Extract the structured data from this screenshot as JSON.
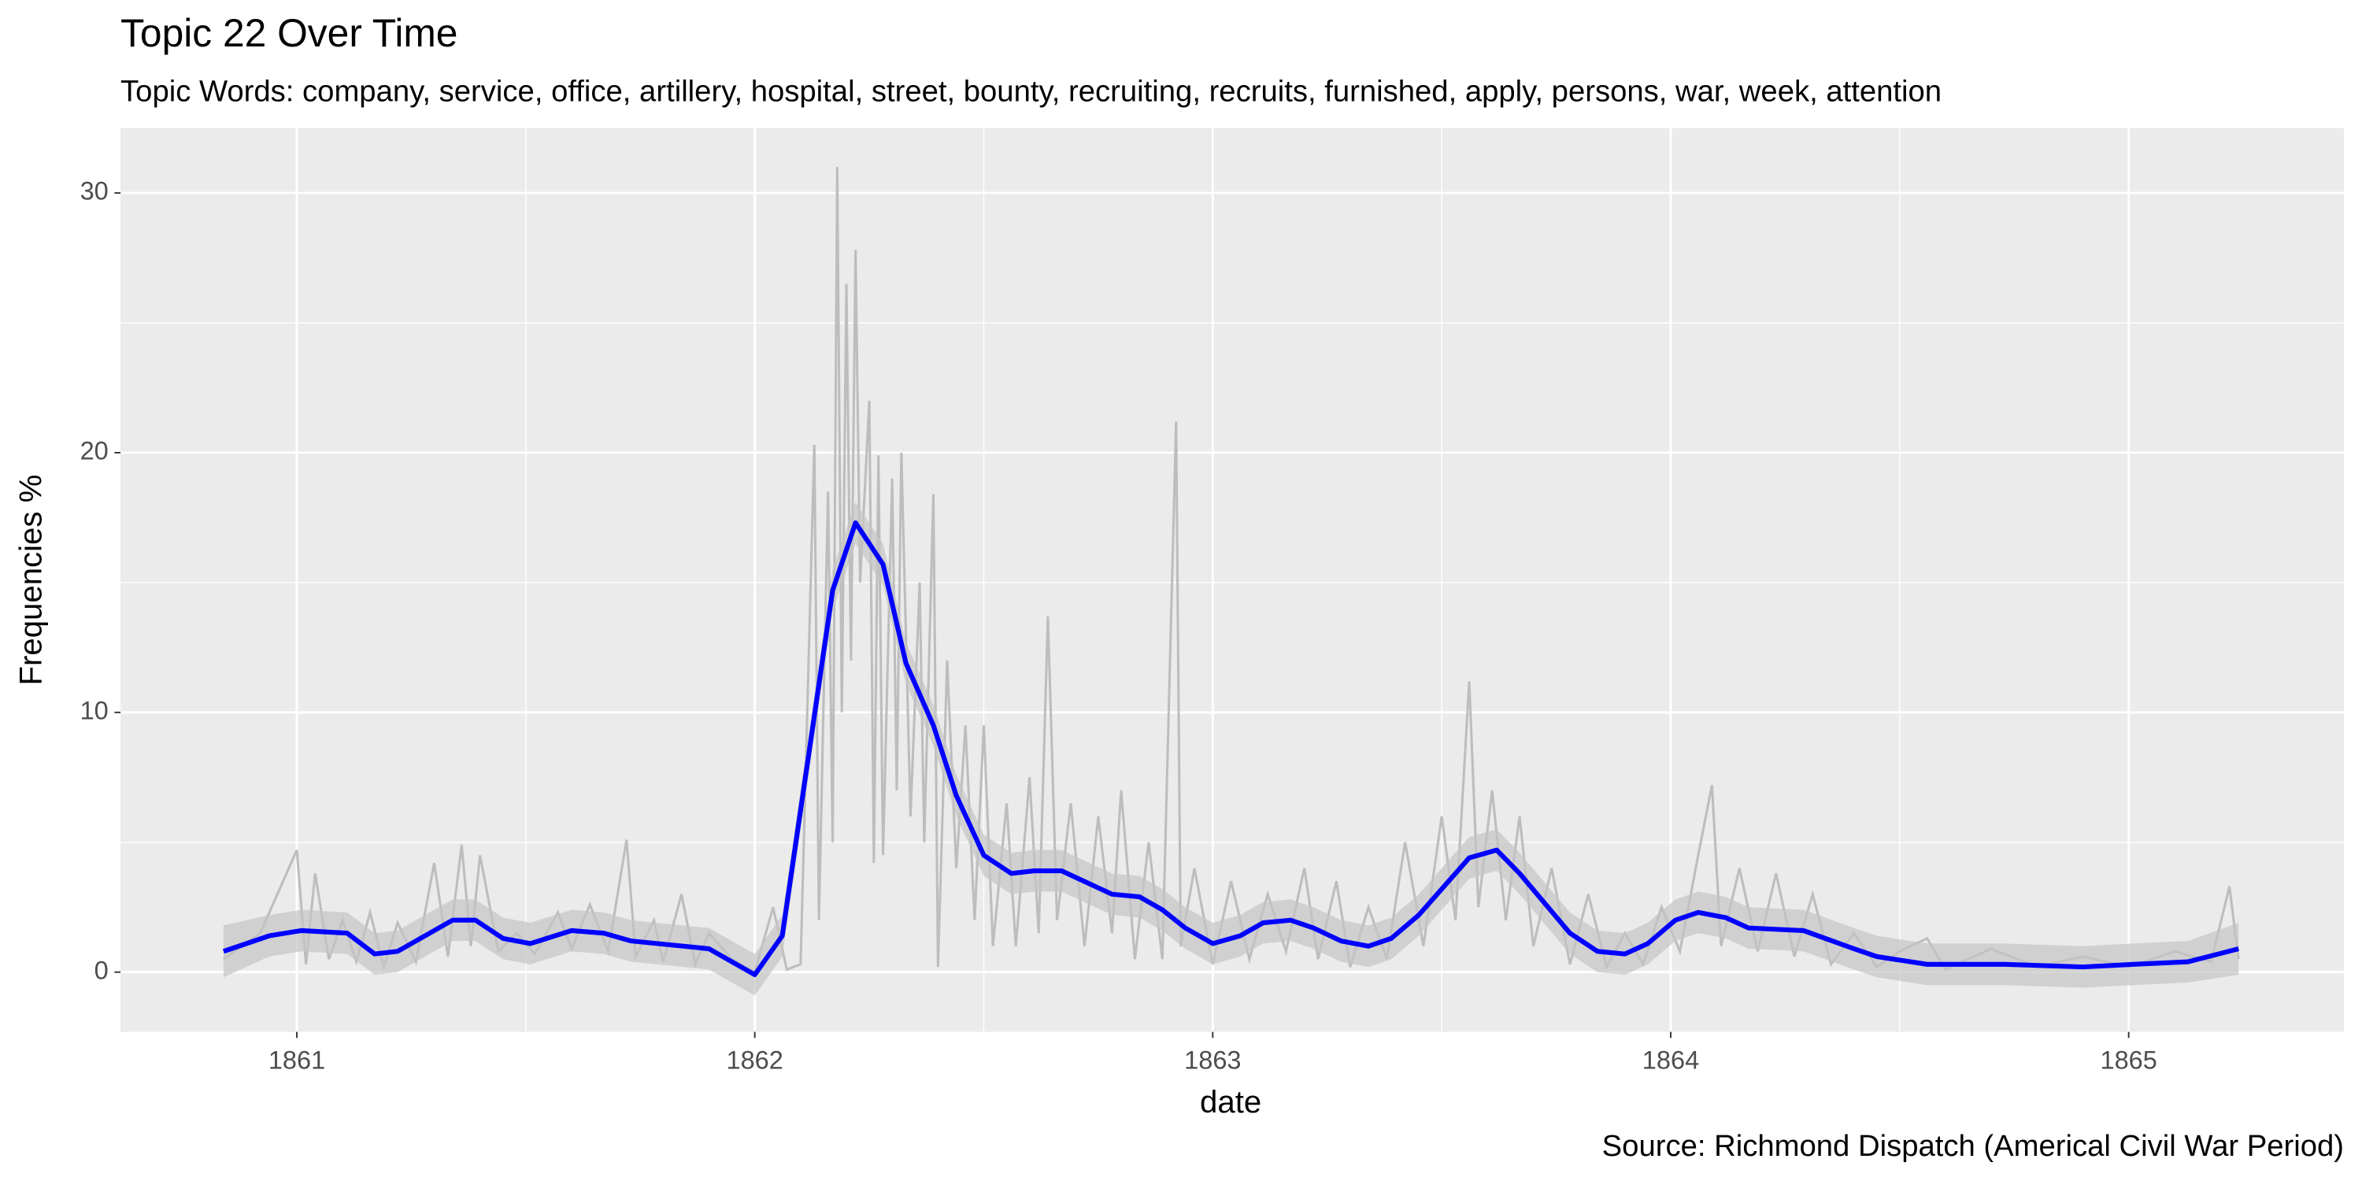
{
  "chart_data": {
    "type": "line",
    "title": "Topic 22 Over Time",
    "subtitle": "Topic Words: company, service, office, artillery, hospital, street, bounty, recruiting, recruits, furnished, apply, persons, war, week, attention",
    "x_label": "date",
    "y_label": "Frequencies %",
    "caption": "Source: Richmond Dispatch (Americal Civil War Period)",
    "xlim": [
      1860.615,
      1865.47
    ],
    "xticks": [
      1861,
      1862,
      1863,
      1864,
      1865
    ],
    "xminorticks": [
      1861.5,
      1862.5,
      1863.5,
      1864.5
    ],
    "ylim": [
      -2.3,
      32.5
    ],
    "yticks": [
      0,
      10,
      20,
      30
    ],
    "yminorticks": [
      5,
      15,
      25
    ],
    "grid": true,
    "background": "#ebebeb",
    "series": [
      {
        "color": "#bdbdbd",
        "x": [
          1860.84,
          1860.92,
          1861.0,
          1861.02,
          1861.04,
          1861.07,
          1861.1,
          1861.13,
          1861.16,
          1861.19,
          1861.22,
          1861.26,
          1861.3,
          1861.33,
          1861.36,
          1861.38,
          1861.4,
          1861.44,
          1861.48,
          1861.52,
          1861.57,
          1861.6,
          1861.64,
          1861.68,
          1861.72,
          1861.74,
          1861.78,
          1861.8,
          1861.84,
          1861.87,
          1861.9,
          1861.95,
          1862.0,
          1862.04,
          1862.07,
          1862.1,
          1862.13,
          1862.14,
          1862.16,
          1862.17,
          1862.18,
          1862.19,
          1862.2,
          1862.21,
          1862.22,
          1862.23,
          1862.25,
          1862.26,
          1862.27,
          1862.28,
          1862.3,
          1862.31,
          1862.32,
          1862.34,
          1862.36,
          1862.37,
          1862.39,
          1862.4,
          1862.42,
          1862.44,
          1862.46,
          1862.48,
          1862.5,
          1862.52,
          1862.55,
          1862.57,
          1862.6,
          1862.62,
          1862.64,
          1862.66,
          1862.69,
          1862.72,
          1862.75,
          1862.78,
          1862.8,
          1862.83,
          1862.86,
          1862.89,
          1862.92,
          1862.93,
          1862.96,
          1863.0,
          1863.04,
          1863.08,
          1863.12,
          1863.16,
          1863.2,
          1863.23,
          1863.27,
          1863.3,
          1863.34,
          1863.38,
          1863.42,
          1863.46,
          1863.5,
          1863.53,
          1863.56,
          1863.58,
          1863.61,
          1863.64,
          1863.67,
          1863.7,
          1863.74,
          1863.78,
          1863.82,
          1863.86,
          1863.9,
          1863.94,
          1863.98,
          1864.02,
          1864.06,
          1864.09,
          1864.11,
          1864.15,
          1864.19,
          1864.23,
          1864.27,
          1864.31,
          1864.35,
          1864.4,
          1864.45,
          1864.5,
          1864.56,
          1864.6,
          1864.7,
          1864.8,
          1864.9,
          1865.0,
          1865.1,
          1865.18,
          1865.22,
          1865.24
        ],
        "values": [
          0.5,
          1.5,
          4.7,
          0.3,
          3.8,
          0.5,
          2.0,
          0.4,
          2.3,
          0.2,
          1.9,
          0.4,
          4.2,
          0.6,
          4.9,
          1.0,
          4.5,
          0.8,
          1.5,
          0.7,
          2.3,
          0.9,
          2.6,
          0.8,
          5.1,
          0.6,
          2.0,
          0.4,
          3.0,
          0.3,
          1.5,
          0.5,
          0.0,
          2.5,
          0.1,
          0.3,
          20.3,
          2.0,
          18.5,
          5.0,
          31.0,
          10.0,
          26.5,
          12.0,
          27.8,
          15.0,
          22.0,
          4.2,
          19.9,
          4.5,
          19.0,
          7.0,
          20.0,
          6.0,
          15.0,
          5.0,
          18.4,
          0.2,
          12.0,
          4.0,
          9.5,
          2.0,
          9.5,
          1.0,
          6.5,
          1.0,
          7.5,
          1.5,
          13.7,
          2.0,
          6.5,
          1.0,
          6.0,
          1.5,
          7.0,
          0.5,
          5.0,
          0.5,
          21.2,
          1.0,
          4.0,
          0.3,
          3.5,
          0.5,
          3.0,
          0.8,
          4.0,
          0.5,
          3.5,
          0.2,
          2.5,
          0.5,
          5.0,
          1.0,
          6.0,
          2.0,
          11.2,
          2.5,
          7.0,
          2.0,
          6.0,
          1.0,
          4.0,
          0.3,
          3.0,
          0.2,
          1.5,
          0.3,
          2.5,
          0.8,
          4.5,
          7.2,
          1.0,
          4.0,
          0.8,
          3.8,
          0.6,
          3.0,
          0.3,
          1.5,
          0.2,
          0.8,
          1.3,
          0.1,
          0.9,
          0.2,
          0.6,
          0.2,
          0.8,
          0.4,
          3.3,
          0.5
        ]
      },
      {
        "color": "#0000ff",
        "x": [
          1860.84,
          1860.94,
          1861.01,
          1861.11,
          1861.17,
          1861.22,
          1861.34,
          1861.39,
          1861.45,
          1861.51,
          1861.6,
          1861.67,
          1861.73,
          1861.9,
          1862.0,
          1862.06,
          1862.17,
          1862.22,
          1862.28,
          1862.33,
          1862.39,
          1862.44,
          1862.5,
          1862.56,
          1862.61,
          1862.67,
          1862.78,
          1862.84,
          1862.89,
          1862.94,
          1863.0,
          1863.06,
          1863.11,
          1863.17,
          1863.22,
          1863.28,
          1863.34,
          1863.39,
          1863.45,
          1863.56,
          1863.62,
          1863.67,
          1863.78,
          1863.84,
          1863.9,
          1863.95,
          1864.01,
          1864.06,
          1864.12,
          1864.17,
          1864.29,
          1864.4,
          1864.45,
          1864.56,
          1864.73,
          1864.9,
          1865.01,
          1865.13,
          1865.24
        ],
        "values": [
          0.8,
          1.4,
          1.6,
          1.5,
          0.7,
          0.8,
          2.0,
          2.0,
          1.3,
          1.1,
          1.6,
          1.5,
          1.2,
          0.9,
          -0.1,
          1.4,
          14.7,
          17.3,
          15.7,
          11.9,
          9.5,
          6.8,
          4.5,
          3.8,
          3.9,
          3.9,
          3.0,
          2.9,
          2.4,
          1.7,
          1.1,
          1.4,
          1.9,
          2.0,
          1.7,
          1.2,
          1.0,
          1.3,
          2.2,
          4.4,
          4.7,
          3.8,
          1.5,
          0.8,
          0.7,
          1.1,
          2.0,
          2.3,
          2.1,
          1.7,
          1.6,
          0.9,
          0.6,
          0.3,
          0.3,
          0.2,
          0.3,
          0.4,
          0.9
        ]
      }
    ],
    "band": {
      "color": "#c4c4c4",
      "lower": [
        -0.2,
        0.6,
        0.8,
        0.7,
        -0.1,
        0.0,
        1.2,
        1.2,
        0.5,
        0.3,
        0.8,
        0.7,
        0.4,
        0.1,
        -0.9,
        0.6,
        13.9,
        16.5,
        14.9,
        11.1,
        8.7,
        6.0,
        3.7,
        3.0,
        3.1,
        3.1,
        2.2,
        2.1,
        1.6,
        0.9,
        0.3,
        0.6,
        1.1,
        1.2,
        0.9,
        0.4,
        0.2,
        0.5,
        1.4,
        3.6,
        3.9,
        3.0,
        0.7,
        0.0,
        -0.1,
        0.3,
        1.2,
        1.5,
        1.3,
        0.9,
        0.8,
        0.1,
        -0.2,
        -0.5,
        -0.5,
        -0.6,
        -0.5,
        -0.4,
        -0.1
      ],
      "upper": [
        1.8,
        2.2,
        2.4,
        2.3,
        1.5,
        1.6,
        2.8,
        2.8,
        2.1,
        1.9,
        2.4,
        2.3,
        2.0,
        1.7,
        0.7,
        2.2,
        15.5,
        18.1,
        16.5,
        12.7,
        10.3,
        7.6,
        5.3,
        4.6,
        4.7,
        4.7,
        3.8,
        3.7,
        3.2,
        2.5,
        1.9,
        2.2,
        2.7,
        2.8,
        2.5,
        2.0,
        1.8,
        2.1,
        3.0,
        5.2,
        5.5,
        4.6,
        2.3,
        1.6,
        1.5,
        1.9,
        2.8,
        3.1,
        2.9,
        2.5,
        2.4,
        1.7,
        1.4,
        1.1,
        1.1,
        1.0,
        1.1,
        1.2,
        1.9
      ]
    }
  }
}
